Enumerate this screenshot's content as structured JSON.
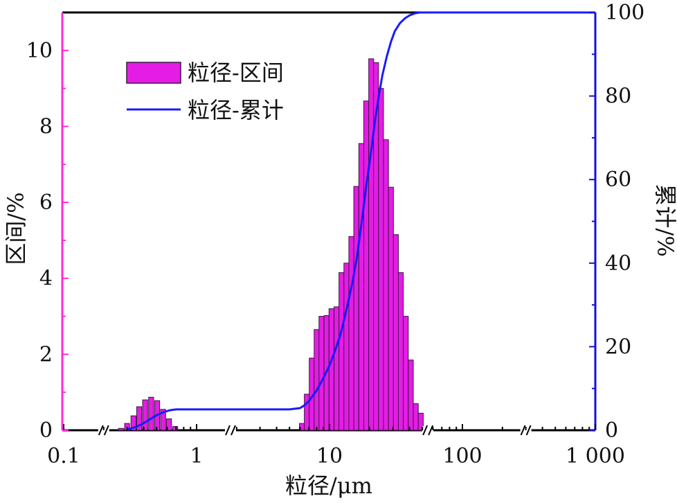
{
  "chart_data": {
    "type": "bar+line",
    "x_scale": "log",
    "xlabel": "粒径/μm",
    "ylabel_left": "区间/%",
    "ylabel_right": "累计/%",
    "ylim_left": [
      0,
      11
    ],
    "ylim_right": [
      0,
      100
    ],
    "xlim": [
      0.1,
      1000
    ],
    "x_ticks": [
      {
        "value": 0.1,
        "label": "0.1"
      },
      {
        "value": 1,
        "label": "1"
      },
      {
        "value": 10,
        "label": "10"
      },
      {
        "value": 100,
        "label": "100"
      },
      {
        "value": 1000,
        "label": "1 000"
      }
    ],
    "y_left_ticks": [
      {
        "value": 0,
        "label": "0"
      },
      {
        "value": 2,
        "label": "2"
      },
      {
        "value": 4,
        "label": "4"
      },
      {
        "value": 6,
        "label": "6"
      },
      {
        "value": 8,
        "label": "8"
      },
      {
        "value": 10,
        "label": "10"
      }
    ],
    "y_right_ticks": [
      {
        "value": 0,
        "label": "0"
      },
      {
        "value": 20,
        "label": "20"
      },
      {
        "value": 40,
        "label": "40"
      },
      {
        "value": 60,
        "label": "60"
      },
      {
        "value": 80,
        "label": "80"
      },
      {
        "value": 100,
        "label": "100"
      }
    ],
    "axis_breaks_x": [
      0.2,
      1.8,
      55,
      300
    ],
    "legend": {
      "position": "top-left",
      "entries": [
        {
          "label": "粒径-区间",
          "kind": "bar"
        },
        {
          "label": "粒径-累计",
          "kind": "line"
        }
      ]
    },
    "colors": {
      "bar_fill": "#e51ce6",
      "bar_edge": "#3a1840",
      "line": "#1a1aff",
      "left_axis": "#ff2bd6",
      "right_axis": "#1010e0",
      "frame": "#000000"
    },
    "series": [
      {
        "name": "粒径-区间",
        "type": "bar",
        "axis": "left",
        "x": [
          0.27,
          0.3,
          0.335,
          0.37,
          0.41,
          0.455,
          0.505,
          0.56,
          0.62,
          0.69,
          6.2,
          6.75,
          7.35,
          8.0,
          8.7,
          9.5,
          10.35,
          11.3,
          12.3,
          13.4,
          14.6,
          15.9,
          17.35,
          18.9,
          20.6,
          22.4,
          24.4,
          26.6,
          29.0,
          31.6,
          34.4,
          37.5,
          40.9,
          44.6,
          48.6,
          53.0
        ],
        "values": [
          0.05,
          0.18,
          0.38,
          0.62,
          0.8,
          0.87,
          0.78,
          0.55,
          0.3,
          0.1,
          0.18,
          0.95,
          1.9,
          2.65,
          3.0,
          3.02,
          3.2,
          3.25,
          4.15,
          4.4,
          5.1,
          6.42,
          7.55,
          8.67,
          9.78,
          9.68,
          9.0,
          7.65,
          6.4,
          5.15,
          4.15,
          3.0,
          1.85,
          0.7,
          0.45,
          0.0
        ]
      },
      {
        "name": "粒径-累计",
        "type": "line",
        "axis": "right",
        "x": [
          0.3,
          0.35,
          0.4,
          0.45,
          0.5,
          0.56,
          0.63,
          0.7,
          0.8,
          1.0,
          2.0,
          5.0,
          6.0,
          6.5,
          7.0,
          8.0,
          9.0,
          10.0,
          11.0,
          12.0,
          13.0,
          14.0,
          15.0,
          16.0,
          17.0,
          18.0,
          19.0,
          20.0,
          21.0,
          22.0,
          23.5,
          25.0,
          27.0,
          29.0,
          31.0,
          34.0,
          37.0,
          40.0,
          44.0,
          48.0,
          53.0,
          60.0,
          100.0,
          1000.0
        ],
        "values": [
          0.2,
          0.8,
          1.7,
          2.7,
          3.6,
          4.3,
          4.8,
          5.0,
          5.0,
          5.0,
          5.0,
          5.0,
          5.3,
          6.0,
          7.0,
          9.5,
          12.5,
          15.5,
          19.0,
          22.5,
          27.0,
          31.5,
          36.0,
          41.0,
          47.0,
          53.0,
          59.0,
          64.0,
          69.0,
          74.0,
          80.0,
          85.0,
          89.5,
          93.0,
          95.5,
          97.5,
          98.6,
          99.3,
          99.8,
          100.0,
          100.0,
          100.0,
          100.0,
          100.0
        ]
      }
    ]
  }
}
